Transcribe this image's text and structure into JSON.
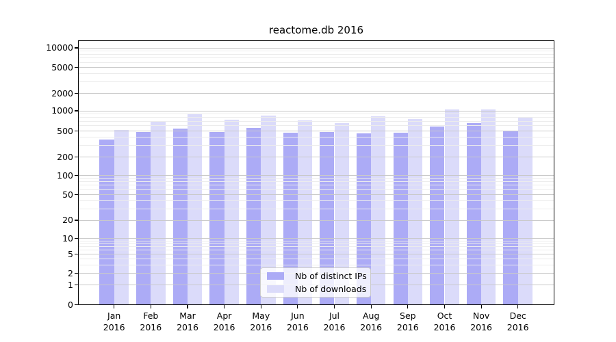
{
  "chart_data": {
    "type": "bar",
    "title": "reactome.db 2016",
    "categories": [
      "Jan",
      "Feb",
      "Mar",
      "Apr",
      "May",
      "Jun",
      "Jul",
      "Aug",
      "Sep",
      "Oct",
      "Nov",
      "Dec"
    ],
    "category_year_line": "2016",
    "series": [
      {
        "name": "Nb of distinct IPs",
        "color": "#acabf6",
        "values": [
          370,
          480,
          545,
          480,
          560,
          475,
          480,
          455,
          475,
          585,
          655,
          505
        ]
      },
      {
        "name": "Nb of downloads",
        "color": "#dbdbfa",
        "values": [
          515,
          680,
          900,
          740,
          845,
          720,
          650,
          820,
          760,
          1060,
          1070,
          815
        ]
      }
    ],
    "xlabel": "",
    "ylabel": "",
    "yscale": "log-with-zero",
    "y_tick_values": [
      0,
      1,
      2,
      5,
      10,
      20,
      50,
      100,
      200,
      500,
      1000,
      2000,
      5000,
      10000
    ],
    "y_tick_labels": [
      "0",
      "1",
      "2",
      "5",
      "10",
      "20",
      "50",
      "100",
      "200",
      "500",
      "1000",
      "2000",
      "5000",
      "10000"
    ],
    "ylim": [
      0,
      13000
    ],
    "grid": "horizontal major and minor gridlines",
    "legend_position": "lower center"
  }
}
